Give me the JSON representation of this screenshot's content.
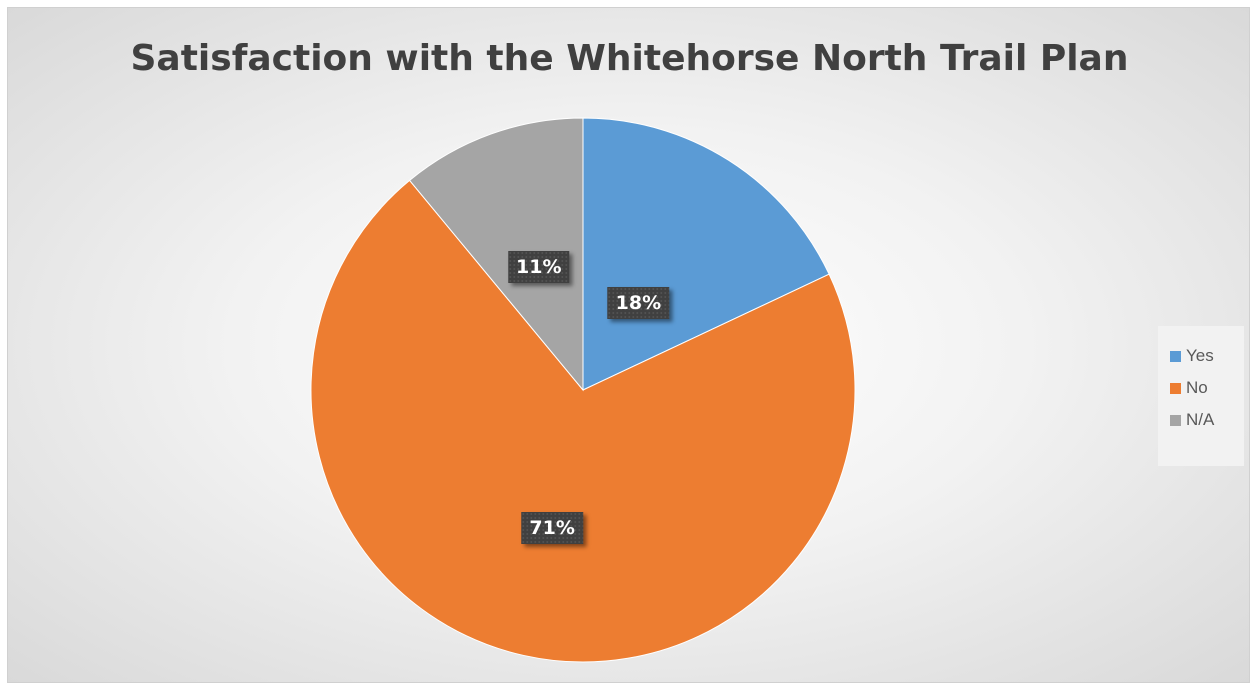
{
  "chart_data": {
    "type": "pie",
    "title": "Satisfaction with the Whitehorse North Trail Plan",
    "categories": [
      "Yes",
      "No",
      "N/A"
    ],
    "values": [
      18,
      71,
      11
    ],
    "data_labels": [
      "18%",
      "71%",
      "11%"
    ],
    "colors": [
      "#5b9bd5",
      "#ed7d31",
      "#a5a5a5"
    ],
    "legend": "right",
    "start_angle": "12 o'clock, clockwise"
  }
}
